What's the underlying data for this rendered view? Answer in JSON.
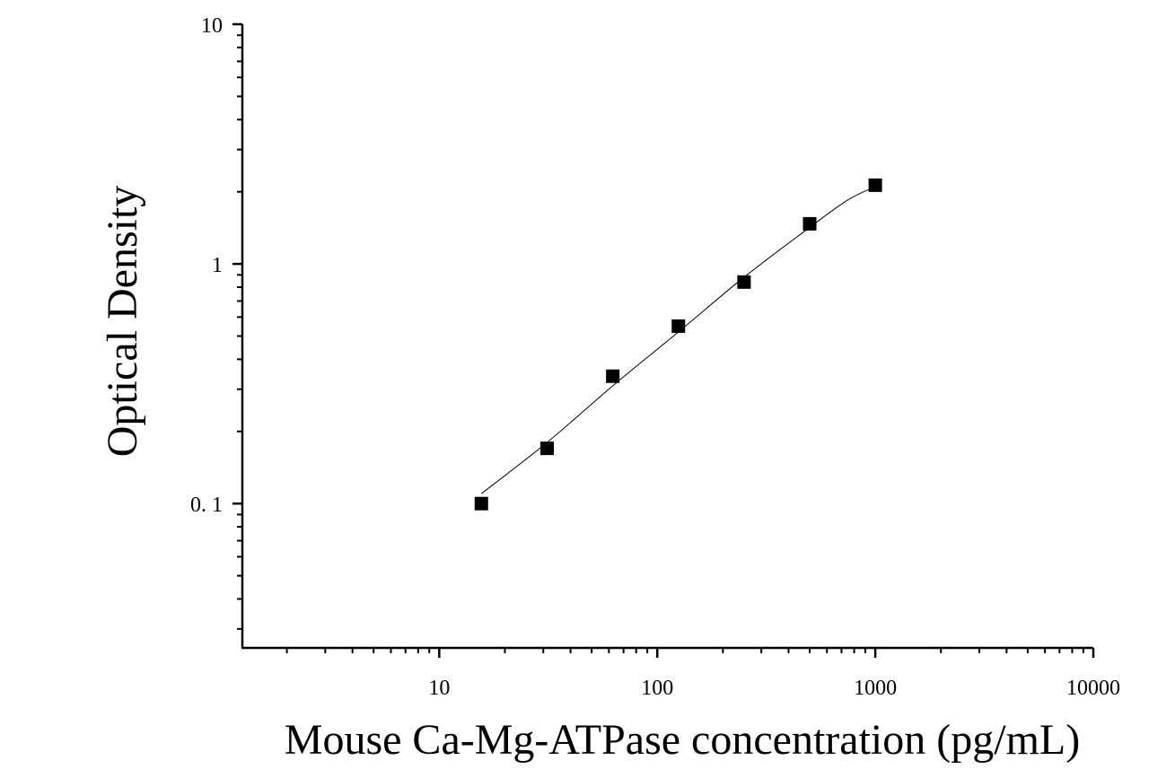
{
  "chart_data": {
    "type": "scatter",
    "title": "",
    "xlabel": "Mouse Ca-Mg-ATPase concentration (pg/mL)",
    "ylabel": "Optical Density",
    "x_scale": "log",
    "y_scale": "log",
    "xlim": [
      1.25,
      10000
    ],
    "ylim": [
      0.025,
      10
    ],
    "x_ticks": [
      {
        "value": 10,
        "label": "10"
      },
      {
        "value": 100,
        "label": "100"
      },
      {
        "value": 1000,
        "label": "1000"
      },
      {
        "value": 10000,
        "label": "10000"
      }
    ],
    "y_ticks": [
      {
        "value": 0.1,
        "label": "0. 1"
      },
      {
        "value": 1,
        "label": "1"
      },
      {
        "value": 10,
        "label": "10"
      }
    ],
    "grid": false,
    "legend": "none",
    "marker_color": "#000000",
    "line_color": "#000000",
    "series": [
      {
        "x": [
          15.6,
          31.25,
          62.5,
          125,
          250,
          500,
          1000
        ],
        "y": [
          0.1,
          0.17,
          0.34,
          0.55,
          0.84,
          1.47,
          2.13
        ]
      }
    ],
    "fit_curve": {
      "x": [
        15.6,
        31.25,
        62.5,
        125,
        250,
        500,
        750,
        1000
      ],
      "y": [
        0.11,
        0.18,
        0.31,
        0.52,
        0.88,
        1.42,
        1.85,
        2.1
      ]
    }
  }
}
